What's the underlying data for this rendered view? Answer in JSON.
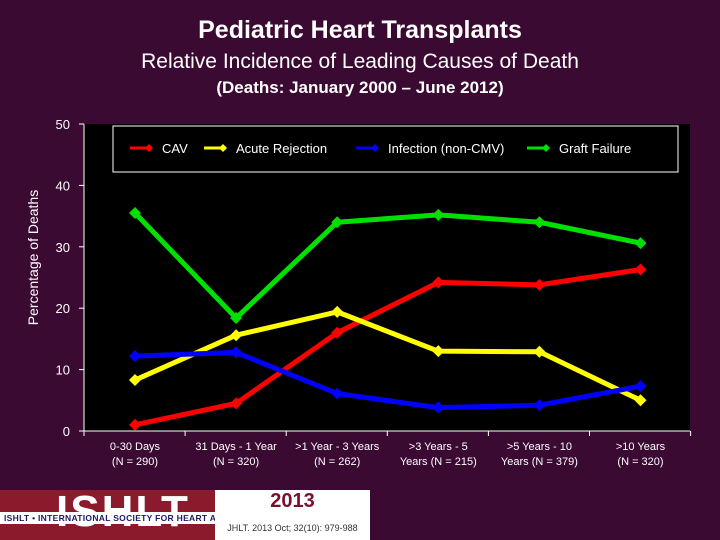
{
  "header": {
    "title": "Pediatric Heart Transplants",
    "subtitle": "Relative Incidence of Leading Causes of Death",
    "range": "(Deaths: January 2000 – June 2012)"
  },
  "chart_data": {
    "type": "line",
    "ylabel": "Percentage of Deaths",
    "xlabel": "",
    "ylim": [
      0,
      50
    ],
    "yticks": [
      0,
      10,
      20,
      30,
      40,
      50
    ],
    "grid": false,
    "legend_position": "top",
    "categories": [
      [
        "0-30 Days",
        "(N = 290)"
      ],
      [
        "31 Days - 1 Year",
        "(N = 320)"
      ],
      [
        ">1 Year - 3 Years",
        "(N = 262)"
      ],
      [
        ">3 Years - 5",
        "Years (N = 215)"
      ],
      [
        ">5 Years - 10",
        "Years (N = 379)"
      ],
      [
        ">10 Years",
        "(N = 320)"
      ]
    ],
    "series": [
      {
        "name": "CAV",
        "color": "#ff0000",
        "values": [
          1.0,
          4.5,
          16.0,
          24.2,
          23.8,
          26.3
        ]
      },
      {
        "name": "Acute Rejection",
        "color": "#ffff00",
        "values": [
          8.3,
          15.6,
          19.4,
          13.0,
          12.9,
          5.0
        ]
      },
      {
        "name": "Infection (non-CMV)",
        "color": "#0000ff",
        "values": [
          12.2,
          12.8,
          6.1,
          3.8,
          4.2,
          7.3
        ]
      },
      {
        "name": "Graft Failure",
        "color": "#00e000",
        "values": [
          35.5,
          18.4,
          34.0,
          35.2,
          34.0,
          30.6
        ]
      }
    ]
  },
  "footer": {
    "logo_text": "ISHLT",
    "society": "ISHLT • INTERNATIONAL SOCIETY FOR HEART AND LUNG TRANSPLANTATION",
    "year": "2013",
    "citation": "JHLT. 2013 Oct; 32(10): 979-988"
  }
}
